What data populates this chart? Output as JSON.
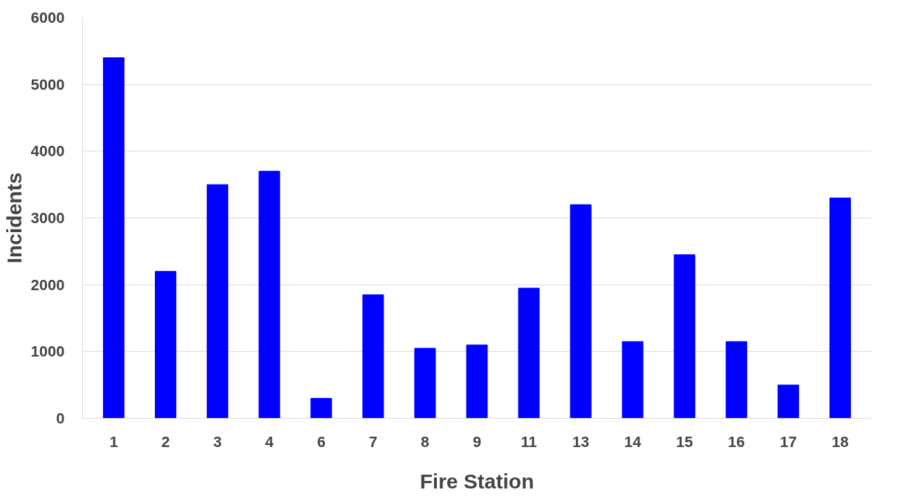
{
  "chart_data": {
    "type": "bar",
    "xlabel": "Fire Station",
    "ylabel": "Incidents",
    "categories": [
      "1",
      "2",
      "3",
      "4",
      "6",
      "7",
      "8",
      "9",
      "11",
      "13",
      "14",
      "15",
      "16",
      "17",
      "18"
    ],
    "values": [
      5400,
      2200,
      3500,
      3700,
      300,
      1850,
      1050,
      1100,
      1950,
      3200,
      1150,
      2450,
      1150,
      500,
      3300
    ],
    "color": "#0000ff",
    "ylim": [
      0,
      6000
    ],
    "yticks": [
      0,
      1000,
      2000,
      3000,
      4000,
      5000,
      6000
    ],
    "grid": "y"
  }
}
